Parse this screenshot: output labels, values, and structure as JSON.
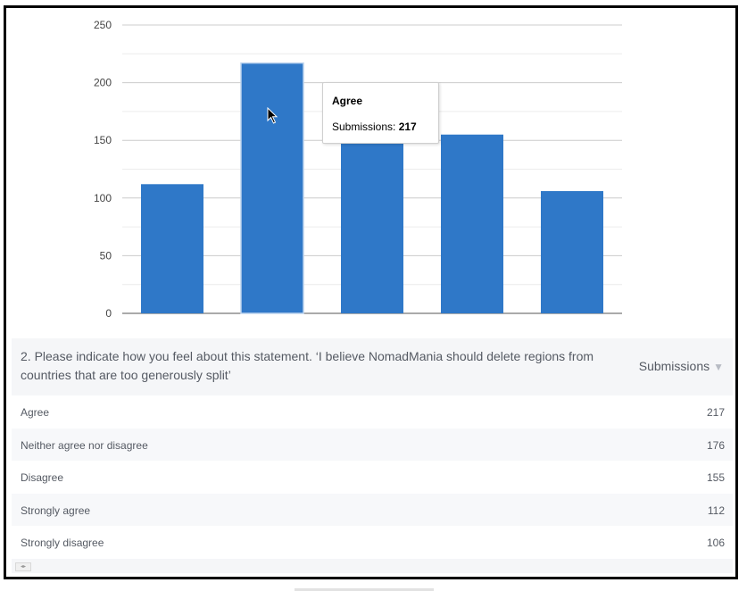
{
  "chart_data": {
    "type": "bar",
    "categories": [
      "Agree",
      "Neither agree nor disagree",
      "Disagree",
      "Strongly agree",
      "Strongly disagree"
    ],
    "display_order": [
      "Strongly agree",
      "Agree",
      "Neither agree nor disagree",
      "Disagree",
      "Strongly disagree"
    ],
    "values": [
      217,
      176,
      155,
      112,
      106
    ],
    "series": [
      {
        "name": "Submissions",
        "values": [
          217,
          176,
          155,
          112,
          106
        ]
      }
    ],
    "ylim": [
      0,
      250
    ],
    "yticks": [
      "0",
      "50",
      "100",
      "150",
      "200",
      "250"
    ],
    "grid": true,
    "bar_color": "#2f78c8",
    "highlighted_category": "Agree"
  },
  "tooltip": {
    "title": "Agree",
    "label": "Submissions: ",
    "value": "217"
  },
  "table": {
    "question": "2. Please indicate how you feel about this statement. ‘I believe NomadMania should delete regions from countries that are too generously split’",
    "column_header": "Submissions",
    "sort_icon": "triangle-down-icon",
    "rows": [
      {
        "label": "Agree",
        "value": "217"
      },
      {
        "label": "Neither agree nor disagree",
        "value": "176"
      },
      {
        "label": "Disagree",
        "value": "155"
      },
      {
        "label": "Strongly agree",
        "value": "112"
      },
      {
        "label": "Strongly disagree",
        "value": "106"
      }
    ]
  },
  "scroll": {
    "buttons": "◂▸"
  }
}
